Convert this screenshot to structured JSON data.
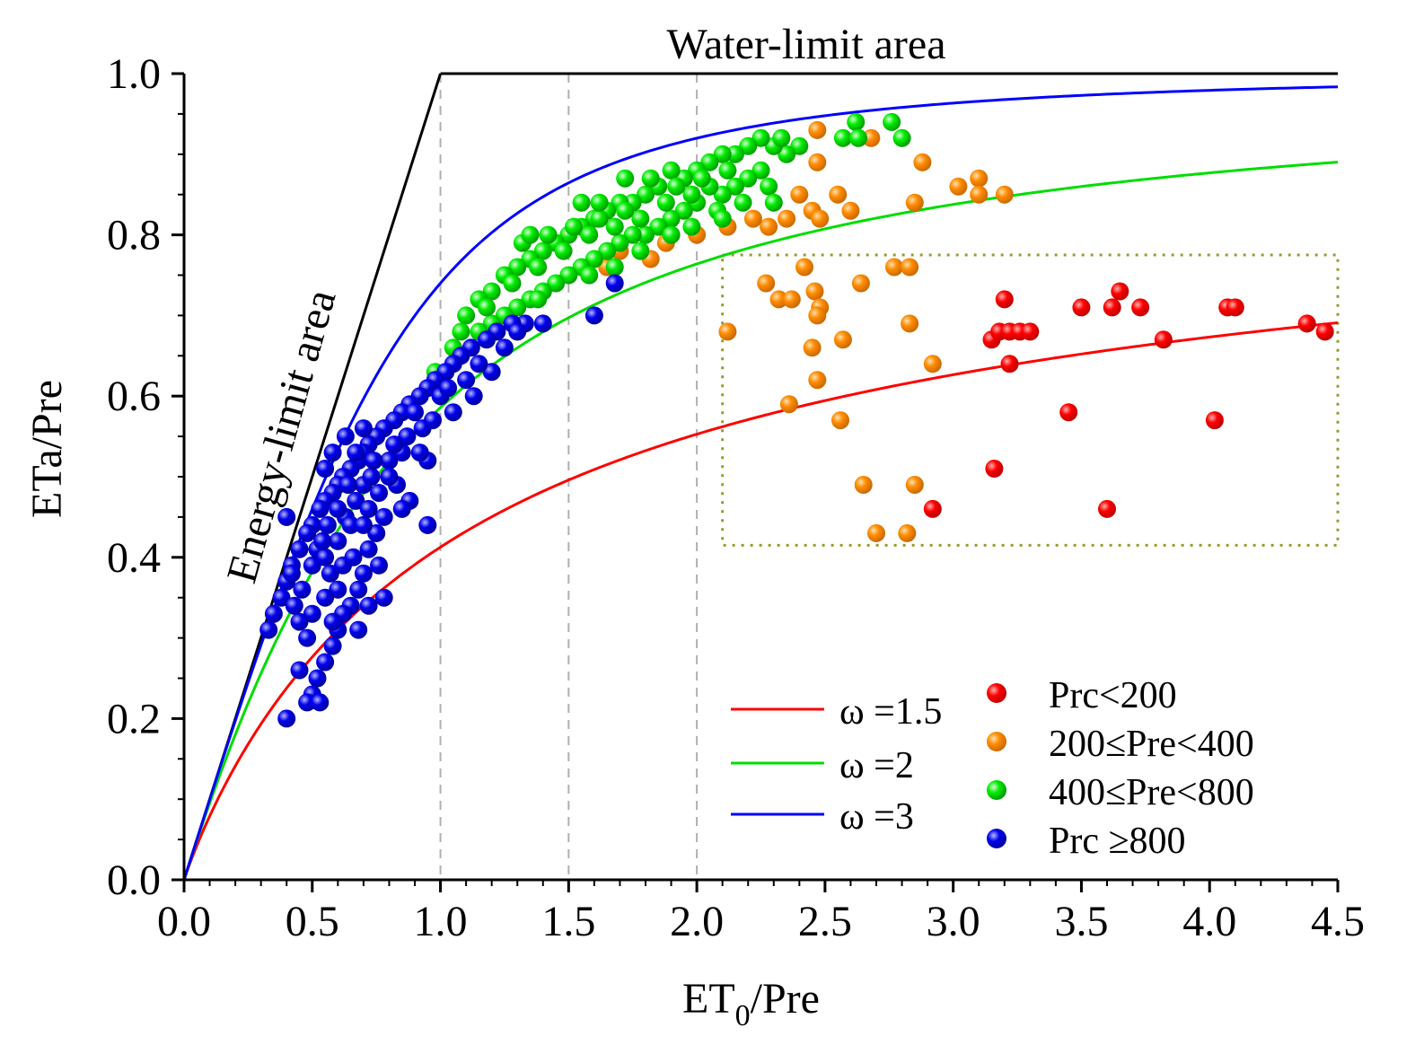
{
  "chart_data": {
    "type": "scatter",
    "title": "Water-limit area",
    "region_label": "Energy-limit area",
    "xlabel": "ET",
    "xlabel_sub": "0",
    "xlabel_tail": "/Pre",
    "ylabel": "ETa/Pre",
    "xlim": [
      0,
      4.5
    ],
    "ylim": [
      0,
      1.0
    ],
    "xticks": [
      "0.0",
      "0.5",
      "1.0",
      "1.5",
      "2.0",
      "2.5",
      "3.0",
      "3.5",
      "4.0",
      "4.5"
    ],
    "yticks": [
      "0.0",
      "0.2",
      "0.4",
      "0.6",
      "0.8",
      "1.0"
    ],
    "vertical_reference_lines": [
      1.0,
      1.5,
      2.0
    ],
    "highlight_box": {
      "x": [
        2.1,
        4.5
      ],
      "y": [
        0.415,
        0.775
      ]
    },
    "curves": [
      {
        "name": "ω =1.5",
        "omega": 1.5,
        "color": "#ff0000"
      },
      {
        "name": "ω =2",
        "omega": 2,
        "color": "#00dd00"
      },
      {
        "name": "ω =3",
        "omega": 3,
        "color": "#0000ff"
      }
    ],
    "limits": [
      {
        "name": "energy limit",
        "x": [
          0,
          1.0
        ],
        "y": [
          0,
          1.0
        ],
        "color": "#000000"
      },
      {
        "name": "water limit",
        "x": [
          1.0,
          4.5
        ],
        "y": [
          1.0,
          1.0
        ],
        "color": "#000000"
      }
    ],
    "series": [
      {
        "name": "Prc<200",
        "color": "#ff0000",
        "points": [
          [
            3.2,
            0.72
          ],
          [
            3.15,
            0.67
          ],
          [
            3.18,
            0.68
          ],
          [
            3.22,
            0.68
          ],
          [
            3.26,
            0.68
          ],
          [
            3.3,
            0.68
          ],
          [
            3.22,
            0.64
          ],
          [
            3.5,
            0.71
          ],
          [
            3.62,
            0.71
          ],
          [
            3.65,
            0.73
          ],
          [
            3.73,
            0.71
          ],
          [
            3.82,
            0.67
          ],
          [
            4.07,
            0.71
          ],
          [
            4.1,
            0.71
          ],
          [
            4.38,
            0.69
          ],
          [
            4.45,
            0.68
          ],
          [
            3.45,
            0.58
          ],
          [
            4.02,
            0.57
          ],
          [
            3.16,
            0.51
          ],
          [
            2.92,
            0.46
          ],
          [
            3.6,
            0.46
          ]
        ]
      },
      {
        "name": "200≤Pre<400",
        "color": "#ff8c00",
        "points": [
          [
            2.47,
            0.93
          ],
          [
            2.68,
            0.92
          ],
          [
            2.47,
            0.89
          ],
          [
            2.88,
            0.89
          ],
          [
            3.02,
            0.86
          ],
          [
            3.1,
            0.87
          ],
          [
            3.1,
            0.85
          ],
          [
            3.2,
            0.85
          ],
          [
            2.85,
            0.84
          ],
          [
            2.55,
            0.85
          ],
          [
            2.4,
            0.85
          ],
          [
            2.45,
            0.83
          ],
          [
            2.48,
            0.82
          ],
          [
            2.6,
            0.83
          ],
          [
            2.35,
            0.82
          ],
          [
            2.28,
            0.81
          ],
          [
            2.22,
            0.82
          ],
          [
            2.12,
            0.81
          ],
          [
            2.0,
            0.8
          ],
          [
            1.88,
            0.79
          ],
          [
            1.82,
            0.77
          ],
          [
            1.7,
            0.78
          ],
          [
            1.65,
            0.76
          ],
          [
            2.12,
            0.68
          ],
          [
            2.27,
            0.74
          ],
          [
            2.32,
            0.72
          ],
          [
            2.37,
            0.72
          ],
          [
            2.42,
            0.76
          ],
          [
            2.46,
            0.73
          ],
          [
            2.48,
            0.71
          ],
          [
            2.47,
            0.7
          ],
          [
            2.45,
            0.66
          ],
          [
            2.57,
            0.67
          ],
          [
            2.64,
            0.74
          ],
          [
            2.77,
            0.76
          ],
          [
            2.83,
            0.76
          ],
          [
            2.83,
            0.69
          ],
          [
            2.92,
            0.64
          ],
          [
            2.47,
            0.62
          ],
          [
            2.36,
            0.59
          ],
          [
            2.56,
            0.57
          ],
          [
            2.65,
            0.49
          ],
          [
            2.85,
            0.49
          ],
          [
            2.7,
            0.43
          ],
          [
            2.82,
            0.43
          ]
        ]
      },
      {
        "name": "400≤Pre<800",
        "color": "#00ee00",
        "points": [
          [
            2.62,
            0.94
          ],
          [
            2.76,
            0.94
          ],
          [
            2.8,
            0.92
          ],
          [
            2.57,
            0.92
          ],
          [
            2.63,
            0.92
          ],
          [
            2.4,
            0.91
          ],
          [
            2.35,
            0.9
          ],
          [
            2.3,
            0.91
          ],
          [
            2.25,
            0.92
          ],
          [
            2.2,
            0.91
          ],
          [
            2.15,
            0.9
          ],
          [
            2.1,
            0.9
          ],
          [
            2.05,
            0.89
          ],
          [
            2.0,
            0.88
          ],
          [
            1.95,
            0.87
          ],
          [
            1.9,
            0.88
          ],
          [
            1.85,
            0.86
          ],
          [
            1.8,
            0.85
          ],
          [
            1.75,
            0.84
          ],
          [
            1.7,
            0.84
          ],
          [
            1.65,
            0.83
          ],
          [
            1.6,
            0.82
          ],
          [
            1.55,
            0.81
          ],
          [
            1.5,
            0.8
          ],
          [
            1.45,
            0.79
          ],
          [
            1.4,
            0.78
          ],
          [
            1.35,
            0.77
          ],
          [
            1.3,
            0.76
          ],
          [
            1.25,
            0.75
          ],
          [
            1.2,
            0.73
          ],
          [
            1.15,
            0.72
          ],
          [
            1.1,
            0.7
          ],
          [
            1.08,
            0.68
          ],
          [
            1.05,
            0.66
          ],
          [
            0.98,
            0.63
          ],
          [
            2.25,
            0.88
          ],
          [
            2.2,
            0.87
          ],
          [
            2.15,
            0.86
          ],
          [
            2.1,
            0.85
          ],
          [
            2.05,
            0.86
          ],
          [
            2.0,
            0.84
          ],
          [
            1.95,
            0.83
          ],
          [
            1.9,
            0.82
          ],
          [
            1.85,
            0.81
          ],
          [
            1.8,
            0.8
          ],
          [
            1.75,
            0.8
          ],
          [
            1.7,
            0.79
          ],
          [
            1.65,
            0.78
          ],
          [
            1.6,
            0.77
          ],
          [
            1.55,
            0.76
          ],
          [
            1.5,
            0.75
          ],
          [
            1.45,
            0.74
          ],
          [
            1.4,
            0.73
          ],
          [
            1.35,
            0.72
          ],
          [
            1.3,
            0.71
          ],
          [
            1.25,
            0.7
          ],
          [
            1.2,
            0.69
          ],
          [
            1.15,
            0.68
          ],
          [
            2.28,
            0.86
          ],
          [
            2.18,
            0.84
          ],
          [
            2.08,
            0.83
          ],
          [
            1.98,
            0.85
          ],
          [
            1.88,
            0.84
          ],
          [
            1.78,
            0.82
          ],
          [
            1.68,
            0.81
          ],
          [
            1.58,
            0.8
          ],
          [
            1.48,
            0.78
          ],
          [
            1.38,
            0.76
          ],
          [
            1.28,
            0.74
          ],
          [
            1.18,
            0.71
          ],
          [
            2.12,
            0.88
          ],
          [
            2.02,
            0.87
          ],
          [
            1.92,
            0.86
          ],
          [
            1.82,
            0.87
          ],
          [
            1.72,
            0.83
          ],
          [
            1.62,
            0.82
          ],
          [
            1.52,
            0.81
          ],
          [
            1.42,
            0.8
          ],
          [
            1.32,
            0.79
          ],
          [
            2.3,
            0.84
          ],
          [
            1.98,
            0.81
          ],
          [
            1.78,
            0.78
          ],
          [
            1.58,
            0.75
          ],
          [
            1.38,
            0.72
          ],
          [
            1.68,
            0.76
          ],
          [
            1.9,
            0.8
          ],
          [
            2.1,
            0.82
          ],
          [
            2.33,
            0.92
          ],
          [
            1.62,
            0.84
          ],
          [
            1.72,
            0.87
          ],
          [
            1.55,
            0.84
          ],
          [
            1.35,
            0.8
          ]
        ]
      },
      {
        "name": "Prc≥800",
        "color": "#0000ee",
        "points": [
          [
            1.68,
            0.74
          ],
          [
            1.6,
            0.7
          ],
          [
            1.4,
            0.69
          ],
          [
            1.33,
            0.69
          ],
          [
            1.28,
            0.69
          ],
          [
            1.22,
            0.68
          ],
          [
            1.18,
            0.67
          ],
          [
            1.12,
            0.66
          ],
          [
            1.08,
            0.65
          ],
          [
            1.05,
            0.64
          ],
          [
            1.02,
            0.63
          ],
          [
            0.98,
            0.62
          ],
          [
            0.95,
            0.61
          ],
          [
            0.92,
            0.6
          ],
          [
            0.88,
            0.59
          ],
          [
            0.85,
            0.58
          ],
          [
            0.82,
            0.57
          ],
          [
            0.78,
            0.56
          ],
          [
            0.75,
            0.55
          ],
          [
            0.72,
            0.54
          ],
          [
            0.7,
            0.53
          ],
          [
            0.68,
            0.52
          ],
          [
            0.65,
            0.51
          ],
          [
            0.62,
            0.5
          ],
          [
            0.6,
            0.49
          ],
          [
            0.58,
            0.48
          ],
          [
            0.55,
            0.47
          ],
          [
            0.53,
            0.46
          ],
          [
            0.5,
            0.44
          ],
          [
            0.48,
            0.43
          ],
          [
            0.45,
            0.41
          ],
          [
            0.42,
            0.39
          ],
          [
            0.4,
            0.37
          ],
          [
            0.38,
            0.35
          ],
          [
            0.35,
            0.33
          ],
          [
            0.33,
            0.31
          ],
          [
            1.2,
            0.63
          ],
          [
            1.1,
            0.62
          ],
          [
            1.05,
            0.58
          ],
          [
            1.0,
            0.6
          ],
          [
            0.95,
            0.52
          ],
          [
            0.95,
            0.44
          ],
          [
            0.88,
            0.47
          ],
          [
            0.85,
            0.46
          ],
          [
            0.83,
            0.49
          ],
          [
            0.8,
            0.52
          ],
          [
            0.78,
            0.45
          ],
          [
            0.75,
            0.43
          ],
          [
            0.72,
            0.41
          ],
          [
            0.7,
            0.38
          ],
          [
            0.68,
            0.36
          ],
          [
            0.65,
            0.34
          ],
          [
            0.62,
            0.33
          ],
          [
            0.6,
            0.31
          ],
          [
            0.58,
            0.29
          ],
          [
            0.55,
            0.27
          ],
          [
            0.52,
            0.25
          ],
          [
            0.5,
            0.23
          ],
          [
            0.48,
            0.22
          ],
          [
            0.45,
            0.26
          ],
          [
            0.4,
            0.2
          ],
          [
            0.53,
            0.22
          ],
          [
            0.4,
            0.45
          ],
          [
            0.42,
            0.38
          ],
          [
            0.46,
            0.36
          ],
          [
            0.5,
            0.39
          ],
          [
            0.52,
            0.41
          ],
          [
            0.55,
            0.4
          ],
          [
            0.57,
            0.38
          ],
          [
            0.6,
            0.42
          ],
          [
            0.63,
            0.45
          ],
          [
            0.65,
            0.44
          ],
          [
            0.67,
            0.47
          ],
          [
            0.7,
            0.49
          ],
          [
            0.73,
            0.5
          ],
          [
            0.76,
            0.48
          ],
          [
            0.8,
            0.5
          ],
          [
            0.63,
            0.55
          ],
          [
            0.58,
            0.53
          ],
          [
            0.55,
            0.51
          ],
          [
            0.6,
            0.36
          ],
          [
            0.62,
            0.39
          ],
          [
            0.66,
            0.4
          ],
          [
            0.7,
            0.44
          ],
          [
            0.72,
            0.46
          ],
          [
            0.76,
            0.39
          ],
          [
            0.78,
            0.35
          ],
          [
            0.72,
            0.34
          ],
          [
            0.68,
            0.31
          ],
          [
            0.58,
            0.32
          ],
          [
            0.55,
            0.35
          ],
          [
            0.5,
            0.33
          ],
          [
            0.48,
            0.3
          ],
          [
            0.45,
            0.32
          ],
          [
            0.43,
            0.34
          ],
          [
            0.9,
            0.58
          ],
          [
            0.93,
            0.56
          ],
          [
            0.97,
            0.57
          ],
          [
            1.03,
            0.61
          ],
          [
            1.13,
            0.6
          ],
          [
            0.87,
            0.55
          ],
          [
            0.85,
            0.53
          ],
          [
            0.67,
            0.53
          ],
          [
            0.7,
            0.56
          ],
          [
            0.74,
            0.52
          ],
          [
            0.64,
            0.49
          ],
          [
            0.6,
            0.46
          ],
          [
            0.56,
            0.44
          ],
          [
            0.54,
            0.42
          ],
          [
            1.25,
            0.66
          ],
          [
            1.3,
            0.68
          ],
          [
            1.15,
            0.64
          ],
          [
            0.92,
            0.53
          ],
          [
            0.82,
            0.54
          ]
        ]
      }
    ]
  },
  "legend": {
    "curves": [
      "ω =1.5",
      "ω =2",
      "ω =3"
    ],
    "markers": [
      "Prc<200",
      "200≤Pre<400",
      "400≤Pre<800",
      "Prc ≥800"
    ]
  }
}
